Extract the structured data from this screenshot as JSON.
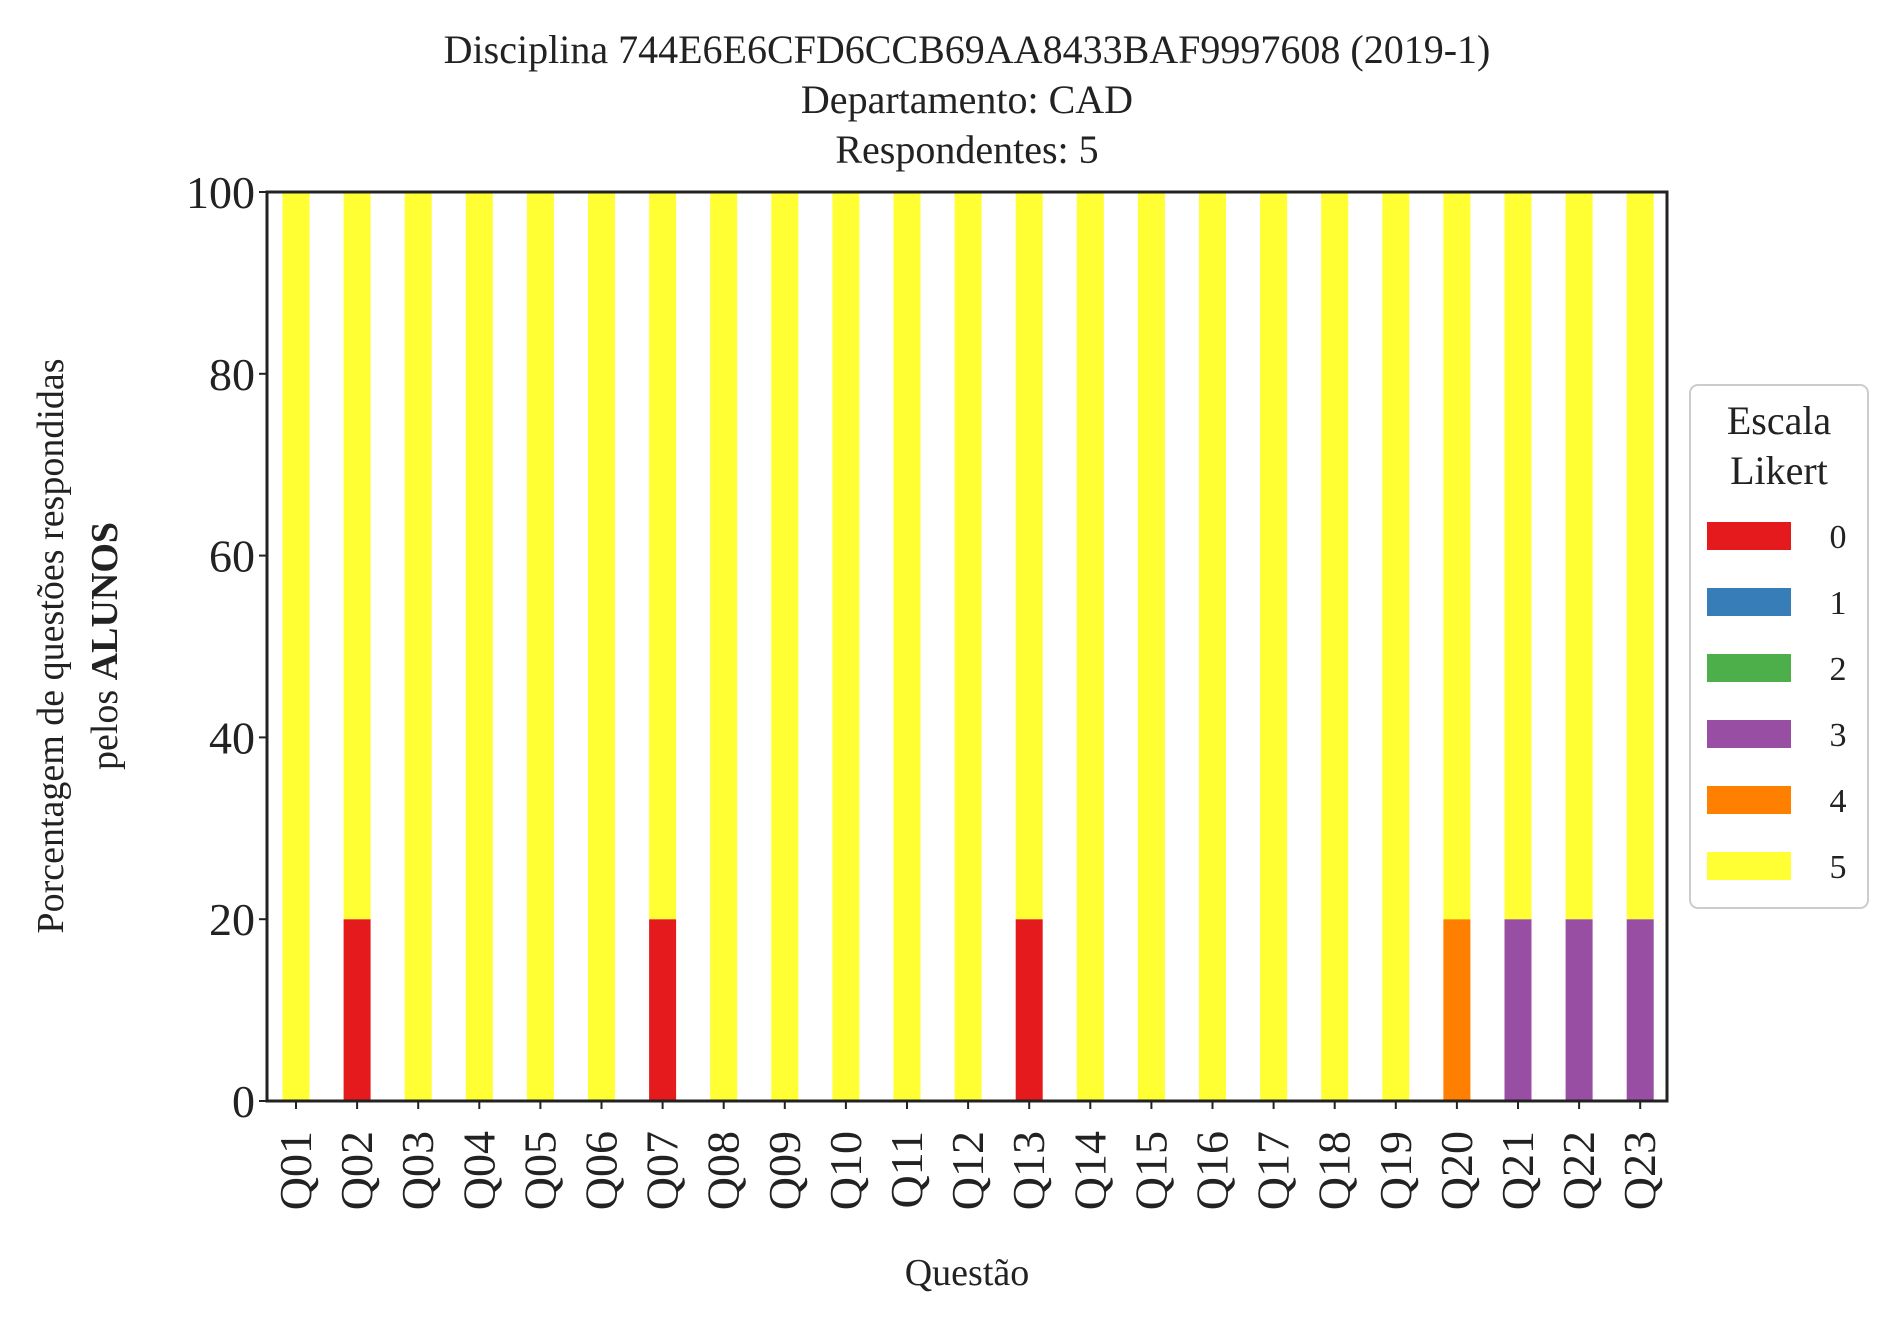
{
  "chart_data": {
    "type": "bar",
    "stacked": true,
    "title": [
      "Disciplina 744E6E6CFD6CCB69AA8433BAF9997608 (2019-1)",
      "Departamento: CAD",
      "Respondentes: 5"
    ],
    "xlabel": "Questão",
    "ylabel": [
      "Porcentagem de questões respondidas",
      "pelos ",
      "ALUNOS"
    ],
    "ylim": [
      0,
      100
    ],
    "yticks": [
      0,
      20,
      40,
      60,
      80,
      100
    ],
    "grid": false,
    "legend": {
      "title": [
        "Escala",
        "Likert"
      ],
      "placement": "right"
    },
    "categories": [
      "Q01",
      "Q02",
      "Q03",
      "Q04",
      "Q05",
      "Q06",
      "Q07",
      "Q08",
      "Q09",
      "Q10",
      "Q11",
      "Q12",
      "Q13",
      "Q14",
      "Q15",
      "Q16",
      "Q17",
      "Q18",
      "Q19",
      "Q20",
      "Q21",
      "Q22",
      "Q23"
    ],
    "series": [
      {
        "name": "0",
        "color": "#e41a1c",
        "values": [
          0,
          20,
          0,
          0,
          0,
          0,
          20,
          0,
          0,
          0,
          0,
          0,
          20,
          0,
          0,
          0,
          0,
          0,
          0,
          0,
          0,
          0,
          0
        ]
      },
      {
        "name": "1",
        "color": "#377eb8",
        "values": [
          0,
          0,
          0,
          0,
          0,
          0,
          0,
          0,
          0,
          0,
          0,
          0,
          0,
          0,
          0,
          0,
          0,
          0,
          0,
          0,
          0,
          0,
          0
        ]
      },
      {
        "name": "2",
        "color": "#4daf4a",
        "values": [
          0,
          0,
          0,
          0,
          0,
          0,
          0,
          0,
          0,
          0,
          0,
          0,
          0,
          0,
          0,
          0,
          0,
          0,
          0,
          0,
          0,
          0,
          0
        ]
      },
      {
        "name": "3",
        "color": "#984ea3",
        "values": [
          0,
          0,
          0,
          0,
          0,
          0,
          0,
          0,
          0,
          0,
          0,
          0,
          0,
          0,
          0,
          0,
          0,
          0,
          0,
          0,
          20,
          20,
          20
        ]
      },
      {
        "name": "4",
        "color": "#ff7f00",
        "values": [
          0,
          0,
          0,
          0,
          0,
          0,
          0,
          0,
          0,
          0,
          0,
          0,
          0,
          0,
          0,
          0,
          0,
          0,
          0,
          20,
          0,
          0,
          0
        ]
      },
      {
        "name": "5",
        "color": "#ffff33",
        "values": [
          100,
          80,
          100,
          100,
          100,
          100,
          80,
          100,
          100,
          100,
          100,
          100,
          80,
          100,
          100,
          100,
          100,
          100,
          100,
          80,
          80,
          80,
          80
        ]
      }
    ]
  }
}
